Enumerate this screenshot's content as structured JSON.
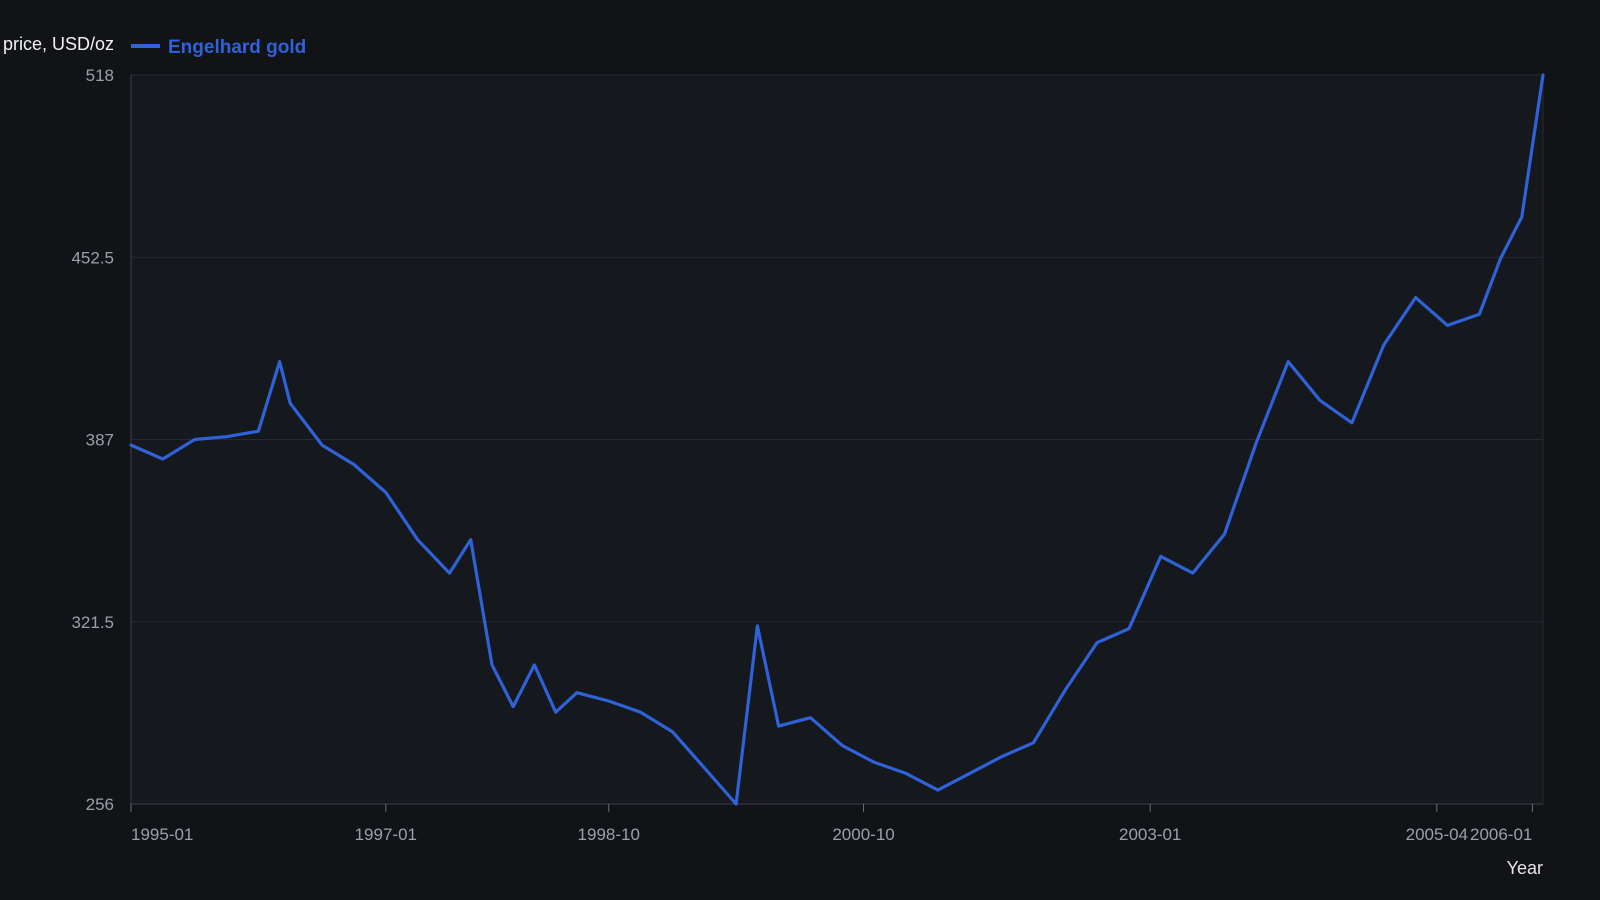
{
  "chart_data": {
    "type": "line",
    "title": "",
    "ylabel": "price, USD/oz",
    "xlabel": "Year",
    "ylim": [
      256,
      518
    ],
    "yticks": [
      "256",
      "321.5",
      "387",
      "452.5",
      "518"
    ],
    "xticks": [
      "1995-01",
      "1997-01",
      "1998-10",
      "2000-10",
      "2003-01",
      "2005-04",
      "2006-01"
    ],
    "grid": "horizontal",
    "legend_position": "top",
    "x": [
      "1995-01",
      "1995-04",
      "1995-07",
      "1995-10",
      "1996-01",
      "1996-03",
      "1996-04",
      "1996-07",
      "1996-10",
      "1997-01",
      "1997-04",
      "1997-07",
      "1997-09",
      "1997-11",
      "1998-01",
      "1998-03",
      "1998-05",
      "1998-07",
      "1998-10",
      "1999-01",
      "1999-04",
      "1999-07",
      "1999-10",
      "1999-12",
      "2000-02",
      "2000-05",
      "2000-08",
      "2000-11",
      "2001-02",
      "2001-05",
      "2001-08",
      "2001-11",
      "2002-02",
      "2002-05",
      "2002-08",
      "2002-11",
      "2003-02",
      "2003-05",
      "2003-08",
      "2003-11",
      "2004-02",
      "2004-05",
      "2004-08",
      "2004-11",
      "2005-02",
      "2005-05",
      "2005-08",
      "2005-10",
      "2005-12",
      "2006-02"
    ],
    "series": [
      {
        "name": "Engelhard gold",
        "color": "#2f62d8",
        "values": [
          385,
          380,
          387,
          388,
          390,
          415,
          400,
          385,
          378,
          368,
          351,
          339,
          351,
          306,
          291,
          306,
          289,
          296,
          293,
          289,
          282,
          269,
          256,
          320,
          284,
          287,
          277,
          271,
          267,
          261,
          267,
          273,
          278,
          297,
          314,
          319,
          345,
          339,
          353,
          386,
          415,
          401,
          393,
          421,
          438,
          428,
          432,
          452,
          467,
          518
        ]
      }
    ]
  }
}
